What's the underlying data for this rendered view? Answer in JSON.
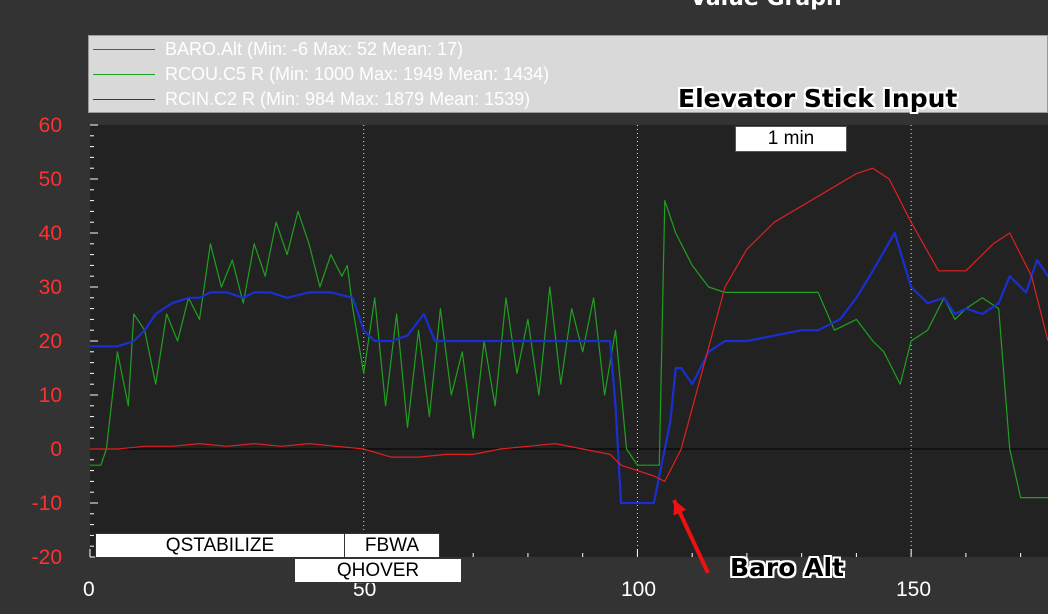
{
  "title": "Value Graph",
  "annotations": {
    "elevator": "Elevator Stick Input",
    "baro": "Baro Alt"
  },
  "time_scale_label": "1 min",
  "modes": {
    "row1": [
      "QSTABILIZE",
      "FBWA"
    ],
    "row2": [
      "QHOVER"
    ]
  },
  "colors": {
    "background": "#333333",
    "plot_bg": "#222222",
    "baro": "#e02020",
    "rcou": "#1fa01f",
    "rcin": "#1a2fd0",
    "axis_label": "#ff3030",
    "annotation_arrow_elev": "#0a1a9a",
    "annotation_arrow_baro": "#ee1111"
  },
  "chart_data": {
    "type": "line",
    "title": "Value Graph",
    "xlabel": "",
    "ylabel": "",
    "xlim": [
      0,
      175
    ],
    "ylim": [
      -20,
      60
    ],
    "x_ticks": [
      "0",
      "50",
      "100",
      "150"
    ],
    "y_ticks": [
      "60",
      "50",
      "40",
      "30",
      "20",
      "10",
      "0",
      "-10",
      "-20"
    ],
    "grid": true,
    "legend": "top",
    "series": [
      {
        "name": "BARO.Alt (Min: -6 Max: 52 Mean: 17)",
        "color_key": "baro",
        "x": [
          0,
          5,
          10,
          15,
          20,
          25,
          30,
          35,
          40,
          45,
          50,
          55,
          60,
          65,
          70,
          75,
          80,
          85,
          90,
          95,
          97,
          100,
          103,
          105,
          108,
          112,
          116,
          120,
          125,
          130,
          135,
          140,
          143,
          146,
          150,
          155,
          160,
          165,
          168,
          172,
          175
        ],
        "y": [
          0,
          0,
          0.5,
          0.5,
          1,
          0.5,
          1,
          0.5,
          1,
          0.5,
          0,
          -1.5,
          -1.5,
          -1,
          -1,
          0,
          0.5,
          1,
          0,
          -1,
          -3,
          -4,
          -5,
          -6,
          0,
          15,
          30,
          37,
          42,
          45,
          48,
          51,
          52,
          50,
          42,
          33,
          33,
          38,
          40,
          32,
          20
        ]
      },
      {
        "name": "RCOU.C5 R (Min: 1000 Max: 1949 Mean: 1434)",
        "color_key": "rcou",
        "x": [
          0,
          2,
          3,
          5,
          7,
          8,
          10,
          12,
          14,
          16,
          18,
          20,
          22,
          24,
          26,
          28,
          30,
          32,
          34,
          36,
          38,
          40,
          42,
          44,
          46,
          47,
          48,
          50,
          52,
          54,
          56,
          58,
          60,
          62,
          64,
          66,
          68,
          70,
          72,
          74,
          76,
          78,
          80,
          82,
          84,
          86,
          88,
          90,
          92,
          94,
          96,
          98,
          100,
          102,
          104,
          105,
          107,
          110,
          113,
          116,
          120,
          125,
          130,
          133,
          136,
          140,
          143,
          145,
          148,
          150,
          153,
          156,
          158,
          160,
          163,
          166,
          168,
          170,
          172,
          175
        ],
        "y": [
          -3,
          -3,
          0,
          18,
          8,
          25,
          22,
          12,
          25,
          20,
          28,
          24,
          38,
          30,
          35,
          27,
          38,
          32,
          42,
          36,
          44,
          38,
          30,
          36,
          32,
          34,
          26,
          14,
          28,
          8,
          25,
          4,
          22,
          6,
          26,
          10,
          18,
          2,
          20,
          8,
          28,
          14,
          24,
          10,
          30,
          12,
          26,
          18,
          28,
          10,
          22,
          0,
          -3,
          -3,
          -3,
          46,
          40,
          34,
          30,
          29,
          29,
          29,
          29,
          29,
          22,
          24,
          20,
          18,
          12,
          20,
          22,
          28,
          24,
          26,
          28,
          26,
          0,
          -9,
          -9,
          -9
        ]
      },
      {
        "name": "RCIN.C2 R (Min: 984 Max: 1879 Mean: 1539)",
        "color_key": "rcin",
        "x": [
          0,
          5,
          8,
          10,
          12,
          15,
          18,
          20,
          22,
          25,
          28,
          30,
          33,
          36,
          40,
          44,
          48,
          50,
          52,
          55,
          58,
          61,
          63,
          65,
          68,
          72,
          76,
          80,
          84,
          88,
          92,
          95,
          96,
          97,
          100,
          103,
          104,
          106,
          107,
          108,
          110,
          113,
          116,
          120,
          125,
          130,
          133,
          137,
          140,
          143,
          147,
          150,
          153,
          156,
          158,
          160,
          163,
          166,
          168,
          171,
          173,
          175
        ],
        "y": [
          19,
          19,
          20,
          22,
          25,
          27,
          28,
          28,
          29,
          29,
          28,
          29,
          29,
          28,
          29,
          29,
          28,
          22,
          20,
          20,
          21,
          25,
          20,
          20,
          20,
          20,
          20,
          20,
          20,
          20,
          20,
          20,
          8,
          -10,
          -10,
          -10,
          -5,
          5,
          15,
          15,
          12,
          18,
          20,
          20,
          21,
          22,
          22,
          24,
          28,
          33,
          40,
          30,
          27,
          28,
          25,
          26,
          25,
          27,
          32,
          29,
          35,
          32
        ]
      }
    ]
  }
}
